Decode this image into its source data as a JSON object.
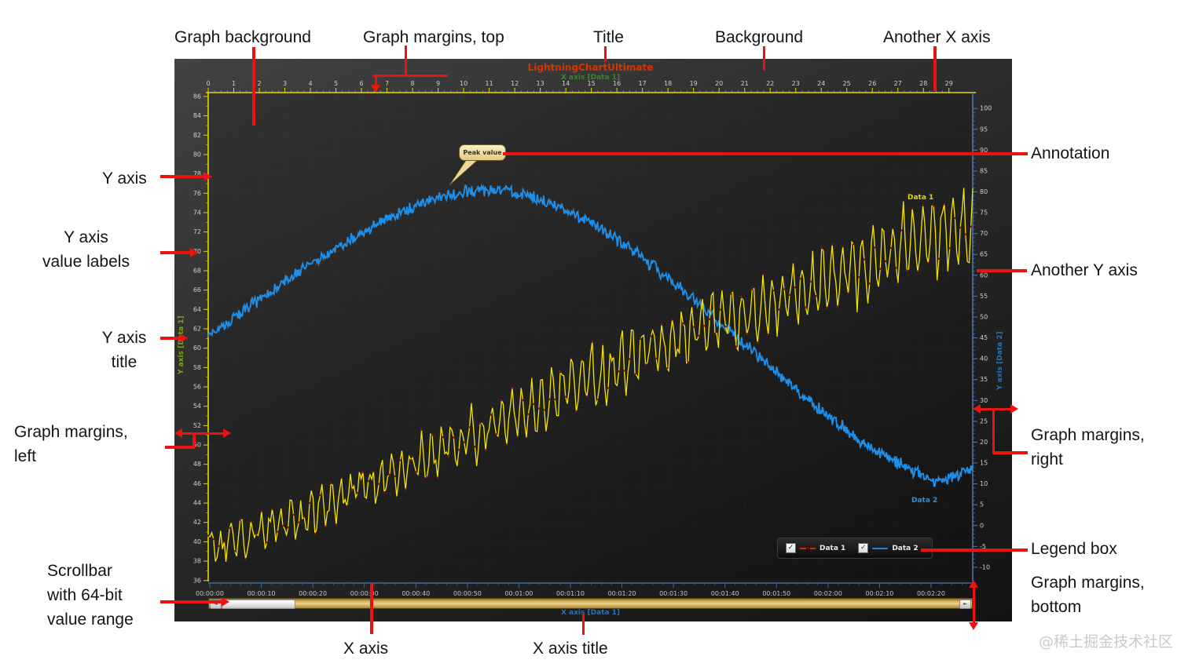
{
  "watermark": "@稀土掘金技术社区",
  "callouts": {
    "graph_background": "Graph background",
    "graph_margins_top": "Graph margins, top",
    "title": "Title",
    "background": "Background",
    "another_x_axis": "Another X axis",
    "y_axis": "Y axis",
    "y_axis_value_labels": "Y axis\nvalue labels",
    "y_axis_title": "Y axis\ntitle",
    "graph_margins_left": "Graph margins,\nleft",
    "scrollbar": "Scrollbar\nwith 64-bit\nvalue range",
    "x_axis": "X axis",
    "x_axis_title": "X axis title",
    "annotation": "Annotation",
    "another_y_axis": "Another Y axis",
    "graph_margins_right": "Graph margins,\nright",
    "legend_box": "Legend box",
    "graph_margins_bottom": "Graph margins,\nbottom"
  },
  "chart": {
    "title": "LightningChartUltimate",
    "top_axis_title": "X axis [Data 1]",
    "bottom_axis_title": "X axis [Data 1]",
    "left_axis_title": "Y axis [Data 1]",
    "right_axis_title": "Y axis [Data 2]",
    "annotation_text": "Peak value",
    "series1_label": "Data 1",
    "series2_label": "Data 2",
    "legend": {
      "item1": "Data 1",
      "item2": "Data 2",
      "check": "✓"
    },
    "scrollbar": {
      "left_glyph": "◄",
      "right_glyph": "►"
    }
  },
  "chart_data": {
    "type": "line",
    "title": "LightningChartUltimate",
    "grid": true,
    "legend_position": "bottom-right",
    "axes": {
      "x_top": {
        "title": "X axis [Data 1]",
        "range": [
          0,
          29.93
        ],
        "tick_min": 0,
        "tick_max": 29,
        "tick_step": 1,
        "color": "#e6d800"
      },
      "x_bottom": {
        "title": "X axis [Data 1]",
        "color": "#3b6aa0",
        "tick_labels": [
          "00:00:00",
          "00:00:10",
          "00:00:20",
          "00:00:30",
          "00:00:40",
          "00:00:50",
          "00:01:00",
          "00:01:10",
          "00:01:20",
          "00:01:30",
          "00:01:40",
          "00:01:50",
          "00:02:00",
          "00:02:10",
          "00:02:20"
        ]
      },
      "y_left": {
        "title": "Y axis [Data 1]",
        "range": [
          35.9,
          86.4
        ],
        "label_min": 36,
        "label_max": 86,
        "label_step": 2,
        "color": "#e6d800"
      },
      "y_right": {
        "title": "Y axis [Data 2]",
        "range": [
          -13.4,
          103.8
        ],
        "label_min": -10,
        "label_max": 100,
        "label_step": 5,
        "color": "#4f81bd"
      }
    },
    "series": [
      {
        "name": "Data 1",
        "axis": "left",
        "color": "#f5e400",
        "marker_color": "#8b0f0f",
        "keypoints_x": [
          0,
          2,
          4,
          6,
          8,
          10,
          12,
          14,
          16,
          18,
          20,
          22,
          24,
          26,
          28,
          29.9
        ],
        "keypoints_y": [
          39.5,
          41,
          43,
          45.5,
          48,
          50.5,
          53,
          55.5,
          58,
          60.5,
          62.5,
          64.5,
          66.5,
          69,
          71.5,
          72.5
        ],
        "noise": 1.2,
        "osc_amp_start": 1.3,
        "osc_amp_end": 4.5,
        "osc_freq": 16
      },
      {
        "name": "Data 2",
        "axis": "right",
        "color": "#1e8fe8",
        "keypoints_x": [
          0,
          1.5,
          3,
          4.5,
          6,
          7.5,
          9,
          10.5,
          12,
          13.5,
          15,
          16.5,
          18,
          19.5,
          21,
          22.5,
          24,
          25.5,
          27,
          28.5,
          29.9
        ],
        "keypoints_y": [
          45,
          52,
          58.5,
          64.5,
          70.5,
          75,
          78.5,
          80.5,
          80,
          77,
          72.5,
          66.5,
          59.5,
          51.5,
          43.5,
          35.5,
          27.5,
          20.5,
          15,
          10.5,
          13.5
        ],
        "noise": 1.3
      }
    ],
    "annotation": {
      "text": "Peak value",
      "x": 9.6,
      "y": 83
    }
  }
}
